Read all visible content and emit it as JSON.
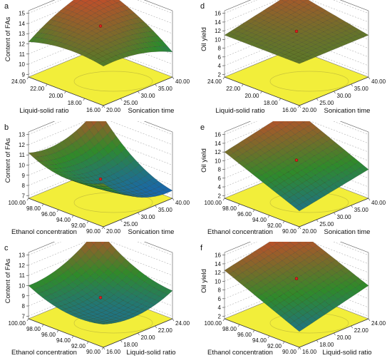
{
  "figure": {
    "panels": [
      {
        "id": "a",
        "zlabel": "Content of FAs",
        "xlabel": "Liquid-solid ratio",
        "ylabel": "Sonication time",
        "zticks": [
          "15",
          "14",
          "13",
          "12",
          "11",
          "10",
          "9"
        ],
        "xticks": [
          "24.00",
          "22.00",
          "20.00",
          "18.00",
          "16.00"
        ],
        "yticks": [
          "40.00",
          "35.00",
          "30.00",
          "25.00",
          "20.00"
        ]
      },
      {
        "id": "d",
        "zlabel": "Oil yield",
        "xlabel": "Liquid-solid ratio",
        "ylabel": "Sonication time",
        "zticks": [
          "16",
          "14",
          "12",
          "10",
          "8",
          "6",
          "4",
          "2"
        ],
        "xticks": [
          "24.00",
          "22.00",
          "20.00",
          "18.00",
          "16.00"
        ],
        "yticks": [
          "40.00",
          "35.00",
          "30.00",
          "25.00",
          "20.00"
        ]
      },
      {
        "id": "b",
        "zlabel": "Content of FAs",
        "xlabel": "Ethanol concentration",
        "ylabel": "Sonication time",
        "zticks": [
          "13",
          "12",
          "11",
          "10",
          "9",
          "8",
          "7"
        ],
        "xticks": [
          "100.00",
          "98.00",
          "96.00",
          "94.00",
          "92.00",
          "90.00"
        ],
        "yticks": [
          "40.00",
          "35.00",
          "30.00",
          "25.00",
          "20.00"
        ]
      },
      {
        "id": "e",
        "zlabel": "Oil yield",
        "xlabel": "Ethanol concentration",
        "ylabel": "Sonication time",
        "zticks": [
          "16",
          "14",
          "12",
          "10",
          "8",
          "6",
          "4",
          "2"
        ],
        "xticks": [
          "100.00",
          "98.00",
          "96.00",
          "94.00",
          "92.00",
          "90.00"
        ],
        "yticks": [
          "40.00",
          "35.00",
          "30.00",
          "25.00",
          "20.00"
        ]
      },
      {
        "id": "c",
        "zlabel": "Content of FAs",
        "xlabel": "Ethanol concentration",
        "ylabel": "Liquid-solid ratio",
        "zticks": [
          "13",
          "12",
          "11",
          "10",
          "9",
          "8",
          "7"
        ],
        "xticks": [
          "100.00",
          "98.00",
          "96.00",
          "94.00",
          "92.00",
          "90.00"
        ],
        "yticks": [
          "24.00",
          "22.00",
          "20.00",
          "18.00",
          "16.00"
        ]
      },
      {
        "id": "f",
        "zlabel": "Oil yield",
        "xlabel": "Ethanol concentration",
        "ylabel": "Liquid-solid ratio",
        "zticks": [
          "16",
          "14",
          "12",
          "10",
          "8",
          "6",
          "4",
          "2"
        ],
        "xticks": [
          "100.00",
          "98.00",
          "96.00",
          "94.00",
          "92.00",
          "90.00"
        ],
        "yticks": [
          "24.00",
          "22.00",
          "20.00",
          "18.00",
          "16.00"
        ]
      }
    ]
  },
  "chart_data": [
    {
      "type": "surface",
      "panel": "a",
      "x_name": "Liquid-solid ratio",
      "x_range": [
        16,
        24
      ],
      "y_name": "Sonication time",
      "y_range": [
        20,
        40
      ],
      "z_name": "Content of FAs",
      "z_range": [
        9,
        15
      ],
      "corners": {
        "x16_y20": 12.6,
        "x24_y20": 12.2,
        "x16_y40": 11.2,
        "x24_y40": 15.0
      },
      "curvature": 1.0,
      "colors": {
        "high": "#d6452a",
        "mid": "#2f8a2a",
        "low": "#1460c8",
        "floor": "#f2ee3a"
      }
    },
    {
      "type": "surface",
      "panel": "d",
      "x_name": "Liquid-solid ratio",
      "x_range": [
        16,
        24
      ],
      "y_name": "Sonication time",
      "y_range": [
        20,
        40
      ],
      "z_name": "Oil yield",
      "z_range": [
        2,
        16
      ],
      "corners": {
        "x16_y20": 11.0,
        "x24_y20": 11.0,
        "x16_y40": 11.0,
        "x24_y40": 14.5
      },
      "curvature": 0.0,
      "colors": {
        "high": "#d6452a",
        "mid": "#2f8a2a",
        "low": "#1460c8",
        "floor": "#f2ee3a"
      }
    },
    {
      "type": "surface",
      "panel": "b",
      "x_name": "Ethanol concentration",
      "x_range": [
        90,
        100
      ],
      "y_name": "Sonication time",
      "y_range": [
        20,
        40
      ],
      "z_name": "Content of FAs",
      "z_range": [
        7,
        13
      ],
      "corners": {
        "x90_y20": 11.0,
        "x100_y20": 11.2,
        "x90_y40": 7.5,
        "x100_y40": 12.8
      },
      "curvature": -2.0,
      "colors": {
        "high": "#d6452a",
        "mid": "#2f8a2a",
        "low": "#1460c8",
        "floor": "#f2ee3a"
      }
    },
    {
      "type": "surface",
      "panel": "e",
      "x_name": "Ethanol concentration",
      "x_range": [
        90,
        100
      ],
      "y_name": "Sonication time",
      "y_range": [
        20,
        40
      ],
      "z_name": "Oil yield",
      "z_range": [
        2,
        16
      ],
      "corners": {
        "x90_y20": 5.0,
        "x100_y20": 12.0,
        "x90_y40": 8.0,
        "x100_y40": 15.5
      },
      "curvature": 0.0,
      "colors": {
        "high": "#d6452a",
        "mid": "#2f8a2a",
        "low": "#1460c8",
        "floor": "#f2ee3a"
      }
    },
    {
      "type": "surface",
      "panel": "c",
      "x_name": "Ethanol concentration",
      "x_range": [
        90,
        100
      ],
      "y_name": "Liquid-solid ratio",
      "y_range": [
        16,
        24
      ],
      "z_name": "Content of FAs",
      "z_range": [
        7,
        13
      ],
      "corners": {
        "x90_y16": 9.0,
        "x100_y16": 10.0,
        "x90_y24": 9.5,
        "x100_y24": 12.8
      },
      "curvature": -1.5,
      "colors": {
        "high": "#d6452a",
        "mid": "#2f8a2a",
        "low": "#1460c8",
        "floor": "#f2ee3a"
      }
    },
    {
      "type": "surface",
      "panel": "f",
      "x_name": "Ethanol concentration",
      "x_range": [
        90,
        100
      ],
      "y_name": "Liquid-solid ratio",
      "y_range": [
        16,
        24
      ],
      "z_name": "Oil yield",
      "z_range": [
        2,
        16
      ],
      "corners": {
        "x90_y16": 5.0,
        "x100_y16": 12.5,
        "x90_y24": 9.0,
        "x100_y24": 16.0
      },
      "curvature": 0.0,
      "colors": {
        "high": "#d6452a",
        "mid": "#2f8a2a",
        "low": "#1460c8",
        "floor": "#f2ee3a"
      }
    }
  ]
}
